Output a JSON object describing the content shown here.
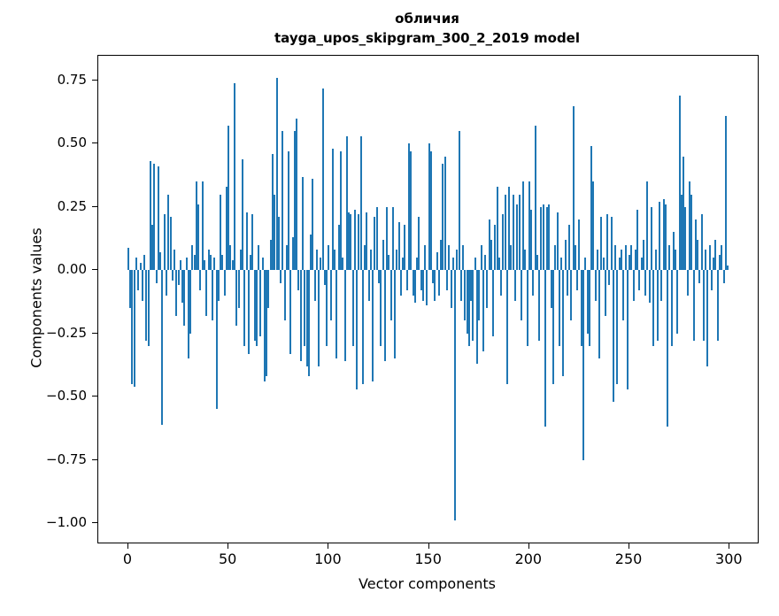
{
  "chart_data": {
    "type": "bar",
    "title": "обличия",
    "subtitle": "tayga_upos_skipgram_300_2_2019 model",
    "xlabel": "Vector components",
    "ylabel": "Components values",
    "xlim": [
      -15,
      314
    ],
    "ylim": [
      -1.077,
      0.848
    ],
    "xticks": [
      0,
      50,
      100,
      150,
      200,
      250,
      300
    ],
    "yticks": [
      0.75,
      0.5,
      0.25,
      0.0,
      -0.25,
      -0.5,
      -0.75,
      -1.0
    ],
    "bar_color": "#1f77b4",
    "grid": false,
    "legend": "none",
    "values": [
      0.09,
      -0.15,
      -0.45,
      -0.46,
      0.05,
      -0.08,
      0.03,
      -0.12,
      0.06,
      -0.28,
      -0.3,
      0.43,
      0.18,
      0.42,
      -0.05,
      0.41,
      0.07,
      -0.61,
      0.22,
      -0.1,
      0.3,
      0.21,
      -0.04,
      0.08,
      -0.18,
      -0.06,
      0.04,
      -0.13,
      -0.22,
      0.05,
      -0.35,
      -0.25,
      0.1,
      0.06,
      0.35,
      0.26,
      -0.08,
      0.35,
      0.04,
      -0.18,
      0.08,
      0.06,
      -0.2,
      0.05,
      -0.55,
      -0.12,
      0.3,
      0.06,
      -0.1,
      0.33,
      0.57,
      0.1,
      0.04,
      0.74,
      -0.22,
      -0.15,
      0.08,
      0.44,
      -0.3,
      0.23,
      -0.33,
      0.06,
      0.22,
      -0.28,
      -0.3,
      0.1,
      -0.26,
      0.05,
      -0.44,
      -0.42,
      -0.15,
      0.12,
      0.46,
      0.3,
      0.76,
      0.21,
      -0.05,
      0.55,
      -0.2,
      0.1,
      0.47,
      -0.33,
      0.13,
      0.55,
      0.6,
      -0.08,
      -0.36,
      0.37,
      -0.3,
      -0.38,
      -0.42,
      0.14,
      0.36,
      -0.12,
      0.08,
      -0.38,
      0.05,
      0.72,
      -0.06,
      -0.3,
      0.1,
      -0.2,
      0.48,
      0.08,
      -0.35,
      0.18,
      0.47,
      0.05,
      -0.36,
      0.53,
      0.23,
      0.22,
      -0.3,
      0.24,
      -0.47,
      0.22,
      0.53,
      -0.45,
      0.1,
      0.23,
      -0.12,
      0.08,
      -0.44,
      0.21,
      0.25,
      -0.05,
      -0.3,
      0.12,
      -0.36,
      0.25,
      0.06,
      -0.2,
      0.25,
      -0.35,
      0.08,
      0.19,
      -0.1,
      0.05,
      0.18,
      -0.08,
      0.5,
      0.47,
      -0.1,
      -0.13,
      0.05,
      0.21,
      -0.08,
      -0.12,
      0.1,
      -0.14,
      0.5,
      0.47,
      -0.05,
      -0.12,
      0.07,
      -0.1,
      0.12,
      0.42,
      0.45,
      -0.08,
      0.1,
      -0.15,
      0.05,
      -0.99,
      0.08,
      0.55,
      -0.12,
      0.1,
      -0.2,
      -0.25,
      -0.3,
      -0.12,
      -0.28,
      0.05,
      -0.37,
      -0.2,
      0.1,
      -0.32,
      0.06,
      -0.15,
      0.2,
      0.12,
      -0.26,
      0.18,
      0.33,
      0.05,
      -0.1,
      0.22,
      0.3,
      -0.45,
      0.33,
      0.1,
      0.3,
      -0.12,
      0.26,
      0.3,
      -0.2,
      0.35,
      0.08,
      -0.3,
      0.35,
      0.24,
      -0.1,
      0.57,
      0.06,
      -0.28,
      0.25,
      0.26,
      -0.62,
      0.25,
      0.26,
      -0.15,
      -0.45,
      0.1,
      0.23,
      -0.3,
      0.05,
      -0.42,
      0.12,
      -0.1,
      0.18,
      -0.2,
      0.65,
      0.1,
      -0.08,
      0.2,
      -0.3,
      -0.75,
      0.05,
      -0.25,
      -0.3,
      0.49,
      0.35,
      -0.12,
      0.08,
      -0.35,
      0.21,
      0.05,
      -0.18,
      0.22,
      -0.06,
      0.21,
      -0.52,
      0.1,
      -0.45,
      0.05,
      0.08,
      -0.2,
      0.1,
      -0.47,
      0.06,
      0.1,
      -0.12,
      0.08,
      0.24,
      -0.08,
      0.05,
      0.12,
      -0.1,
      0.35,
      -0.13,
      0.25,
      -0.3,
      0.08,
      -0.28,
      0.27,
      -0.12,
      0.28,
      0.26,
      -0.62,
      0.1,
      -0.3,
      0.15,
      0.08,
      -0.25,
      0.69,
      0.3,
      0.45,
      0.25,
      -0.1,
      0.35,
      0.3,
      -0.28,
      0.2,
      0.12,
      -0.05,
      0.22,
      -0.28,
      0.08,
      -0.38,
      0.1,
      -0.08,
      0.05,
      0.12,
      -0.28,
      0.06,
      0.1,
      -0.05,
      0.61,
      0.02
    ]
  }
}
